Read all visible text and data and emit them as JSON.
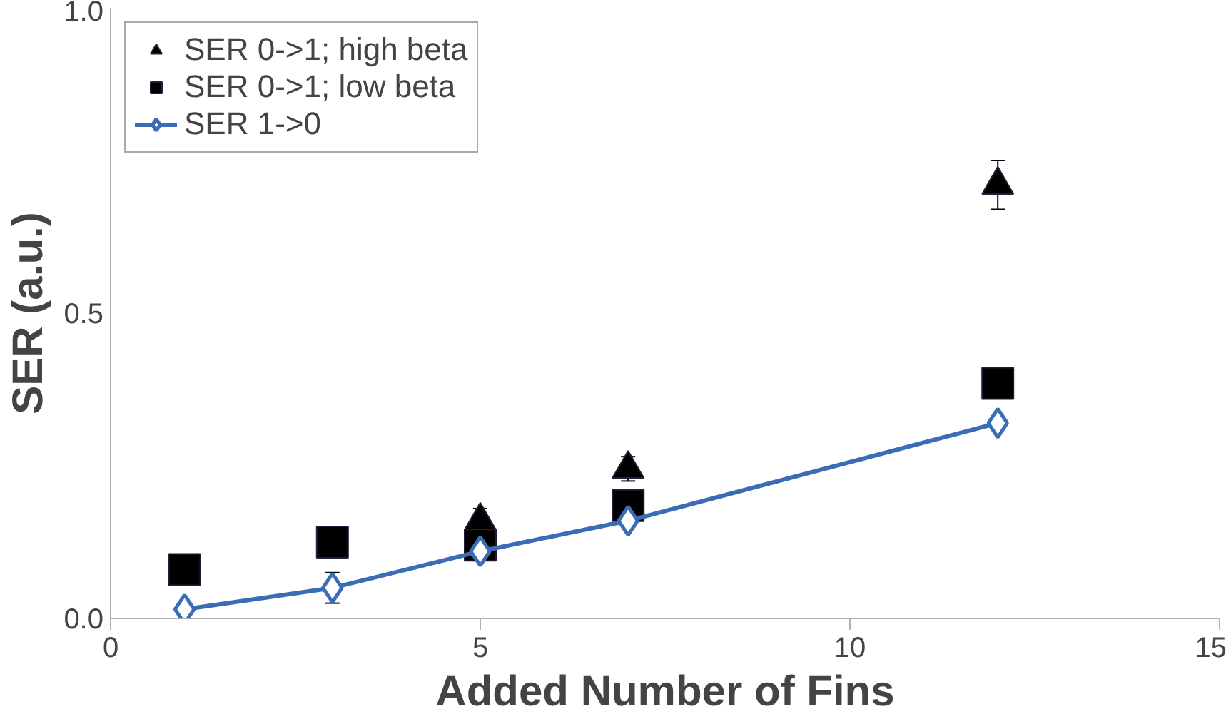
{
  "chart_data": {
    "type": "scatter",
    "xlabel": "Added Number of Fins",
    "ylabel": "SER (a.u.)",
    "xlim": [
      0,
      15
    ],
    "ylim": [
      0,
      1
    ],
    "xticks": [
      0,
      5,
      10,
      15
    ],
    "yticks": [
      {
        "value": 0,
        "label": "0.0"
      },
      {
        "value": 0.5,
        "label": "0.5"
      },
      {
        "value": 1,
        "label": "1.0"
      }
    ],
    "grid": false,
    "legend": "top left",
    "series": [
      {
        "name": "SER 0->1; high beta",
        "color": "#000000",
        "marker": "triangle",
        "x": [
          5,
          7,
          12
        ],
        "values": [
          0.16,
          0.245,
          0.71
        ],
        "errors": [
          0.02,
          0.02,
          0.04
        ]
      },
      {
        "name": "SER 0->1; low beta",
        "color": "#000000",
        "marker": "square",
        "x": [
          1,
          3,
          5,
          7,
          12
        ],
        "values": [
          0.08,
          0.125,
          0.12,
          0.185,
          0.385
        ]
      },
      {
        "name": "SER 1->0",
        "color": "#3a6db5",
        "type": "line",
        "marker": "diamond",
        "x": [
          1,
          3,
          5,
          7,
          12
        ],
        "values": [
          0.015,
          0.05,
          0.11,
          0.16,
          0.32
        ],
        "errors": [
          0.01,
          0.025,
          0.01,
          0.01,
          0.01
        ]
      }
    ]
  }
}
